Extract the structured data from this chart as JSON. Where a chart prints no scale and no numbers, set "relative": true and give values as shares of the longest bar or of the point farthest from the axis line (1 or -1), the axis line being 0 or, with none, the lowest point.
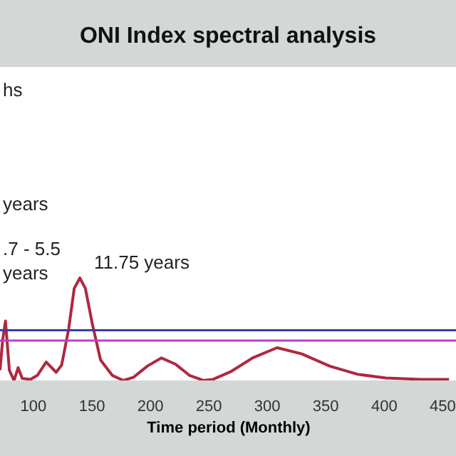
{
  "chart_data": {
    "type": "line",
    "title": "ONI Index spectral analysis",
    "xlabel": "Time period (Monthly)",
    "relative": true,
    "marker": "none",
    "line_style": "solid",
    "xlim": [
      72,
      462
    ],
    "xticks": [
      100,
      150,
      200,
      250,
      300,
      350,
      400,
      450
    ],
    "x": [
      72,
      74.3,
      76.7,
      80,
      84,
      87.5,
      91,
      98,
      104,
      111.5,
      120,
      124.7,
      130.7,
      135.5,
      140.3,
      145,
      151,
      158,
      168,
      177.5,
      186,
      198,
      210,
      222,
      234,
      246,
      254,
      270,
      288,
      309,
      330,
      354,
      378,
      402,
      432,
      456
    ],
    "series": [
      {
        "color": "#b0283f",
        "values": [
          0.1,
          0.4,
          0.58,
          0.1,
          0.0,
          0.125,
          0.02,
          0.01,
          0.05,
          0.18,
          0.08,
          0.15,
          0.5,
          0.9,
          1.0,
          0.9,
          0.55,
          0.2,
          0.05,
          0.0,
          0.03,
          0.14,
          0.22,
          0.16,
          0.05,
          0.0,
          0.01,
          0.09,
          0.22,
          0.32,
          0.26,
          0.14,
          0.06,
          0.025,
          0.01,
          0.01
        ]
      }
    ],
    "ref_lines": [
      {
        "axis": "y",
        "value": 0.49,
        "color": "#3b3fa0"
      },
      {
        "axis": "y",
        "value": 0.39,
        "color": "#c040c0"
      }
    ],
    "annotations": [
      "hs",
      "years",
      ".7 - 5.5",
      "years",
      "11.75 years"
    ]
  }
}
